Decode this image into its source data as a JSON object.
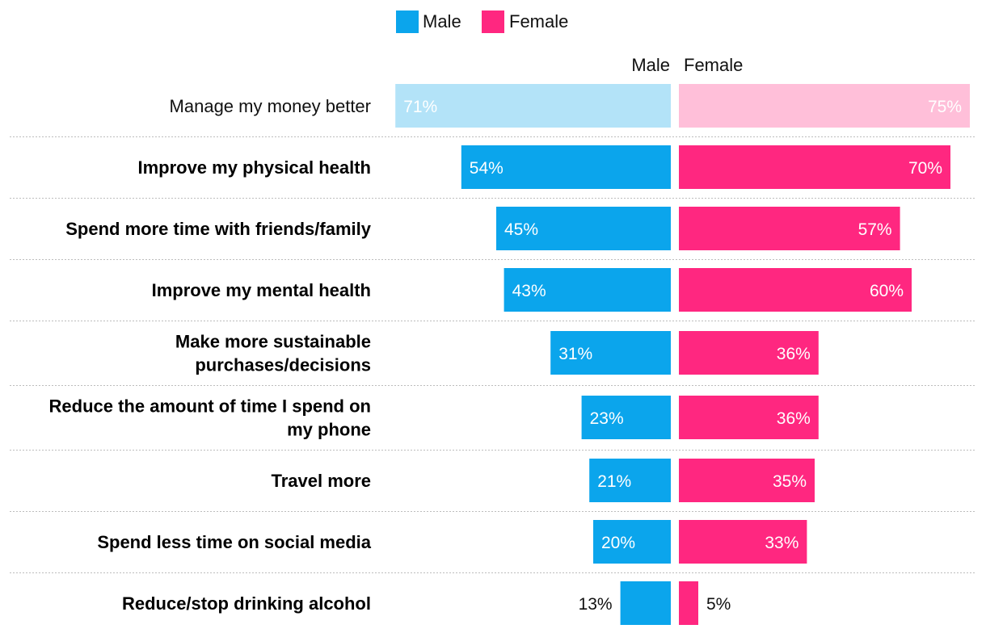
{
  "chart_data": {
    "type": "bar",
    "orientation": "horizontal-butterfly",
    "legend": [
      {
        "name": "Male",
        "color": "#0ba5ec"
      },
      {
        "name": "Female",
        "color": "#ff2780"
      }
    ],
    "column_headers": {
      "male": "Male",
      "female": "Female"
    },
    "categories": [
      "Manage my money better",
      "Improve my physical health",
      "Spend more time with friends/family",
      "Improve my mental health",
      "Make more sustainable purchases/decisions",
      "Reduce the amount of time I spend on my phone",
      "Travel more",
      "Spend less time on social media",
      "Reduce/stop drinking alcohol"
    ],
    "category_lines": [
      [
        "Manage my money better"
      ],
      [
        "Improve my physical health"
      ],
      [
        "Spend more time with friends/family"
      ],
      [
        "Improve my mental health"
      ],
      [
        "Make more sustainable",
        "purchases/decisions"
      ],
      [
        "Reduce the amount of time I spend on",
        "my phone"
      ],
      [
        "Travel more"
      ],
      [
        "Spend less time on social media"
      ],
      [
        "Reduce/stop drinking alcohol"
      ]
    ],
    "highlighted": [
      false,
      true,
      true,
      true,
      true,
      true,
      true,
      true,
      true
    ],
    "series": [
      {
        "name": "Male",
        "values": [
          71,
          54,
          45,
          43,
          31,
          23,
          21,
          20,
          13
        ],
        "labels": [
          "71%",
          "54%",
          "45%",
          "43%",
          "31%",
          "23%",
          "21%",
          "20%",
          "13%"
        ]
      },
      {
        "name": "Female",
        "values": [
          75,
          70,
          57,
          60,
          36,
          36,
          35,
          33,
          5
        ],
        "labels": [
          "75%",
          "70%",
          "57%",
          "60%",
          "36%",
          "36%",
          "35%",
          "33%",
          "5%"
        ]
      }
    ],
    "xlim": [
      0,
      75
    ],
    "colors": {
      "male": "#0ba5ec",
      "female": "#ff2780",
      "male_faded": "#b3e3f8",
      "female_faded": "#ffbfd9"
    }
  }
}
